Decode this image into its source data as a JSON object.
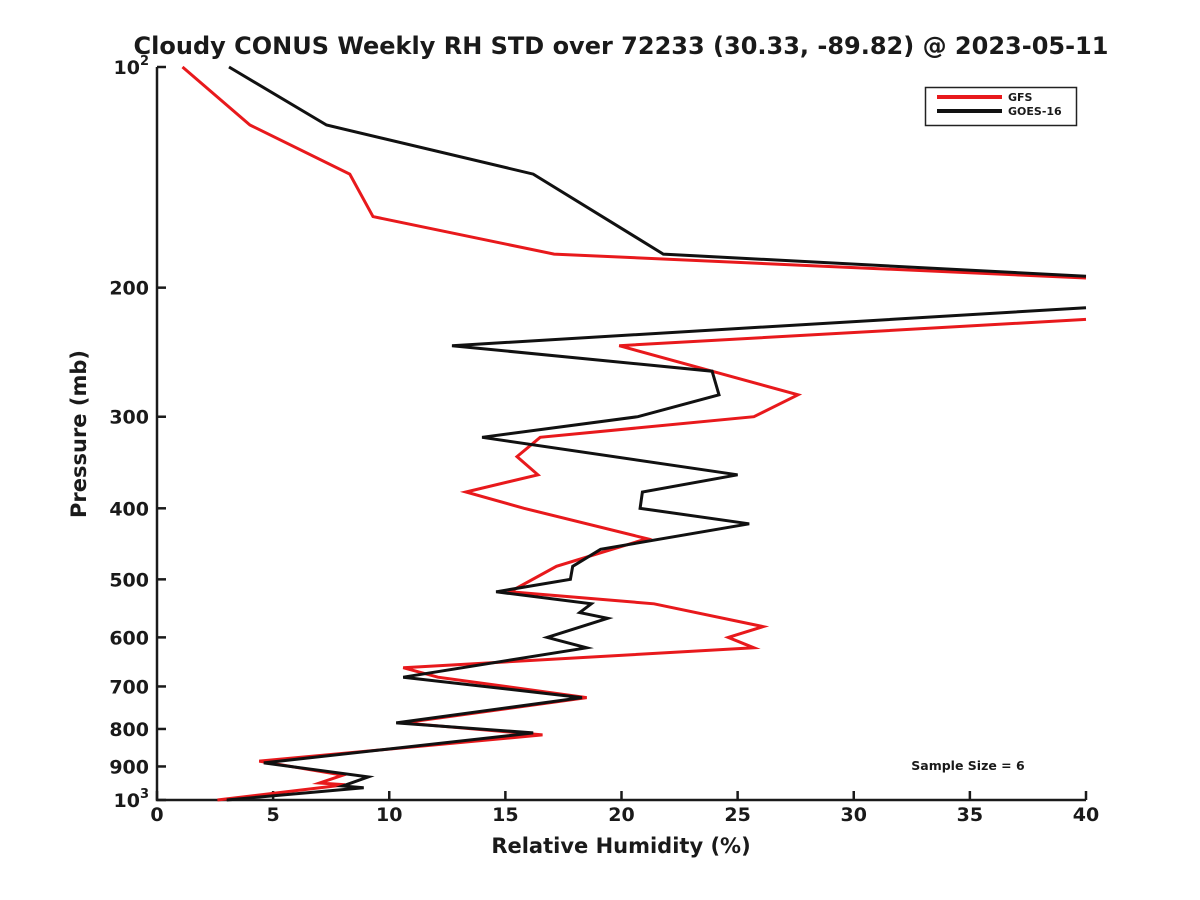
{
  "page": {
    "background": "#ffffff"
  },
  "chart_data": {
    "type": "line",
    "title": "Cloudy CONUS Weekly RH STD over 72233 (30.33, -89.82) @ 2023-05-11",
    "xlabel": "Relative Humidity (%)",
    "ylabel": "Pressure (mb)",
    "x_axis": {
      "min": 0,
      "max": 40,
      "ticks": [
        0,
        5,
        10,
        15,
        20,
        25,
        30,
        35,
        40
      ],
      "grid": false
    },
    "y_axis": {
      "scale": "log",
      "min": 100,
      "max": 1000,
      "inverted": true,
      "grid": false,
      "ticks": [
        {
          "value": 100,
          "label": "10^2"
        },
        {
          "value": 200,
          "label": "200"
        },
        {
          "value": 300,
          "label": "300"
        },
        {
          "value": 400,
          "label": "400"
        },
        {
          "value": 500,
          "label": "500"
        },
        {
          "value": 600,
          "label": "600"
        },
        {
          "value": 700,
          "label": "700"
        },
        {
          "value": 800,
          "label": "800"
        },
        {
          "value": 900,
          "label": "900"
        },
        {
          "value": 1000,
          "label": "10^3"
        }
      ]
    },
    "annotation": {
      "text": "Sample Size = 6"
    },
    "legend": {
      "position": "top-right",
      "entries": [
        {
          "label": "GFS",
          "color": "#e8191c"
        },
        {
          "label": "GOES-16",
          "color": "#111111"
        }
      ]
    },
    "series": [
      {
        "name": "GFS",
        "color": "#e8191c",
        "line_width": 3,
        "segments": [
          [
            [
              1.1,
              100
            ],
            [
              4.0,
              120
            ],
            [
              8.3,
              140
            ],
            [
              9.3,
              160
            ],
            [
              17.1,
              180
            ],
            [
              40,
              194
            ]
          ],
          [
            [
              40,
              221
            ],
            [
              19.9,
              240
            ],
            [
              27.6,
              280
            ],
            [
              25.7,
              300
            ],
            [
              16.5,
              320
            ],
            [
              15.5,
              340
            ],
            [
              16.4,
              360
            ],
            [
              13.3,
              380
            ],
            [
              15.8,
              400
            ],
            [
              21.1,
              440
            ],
            [
              19.1,
              460
            ],
            [
              17.2,
              480
            ],
            [
              15.2,
              520
            ],
            [
              21.4,
              540
            ],
            [
              26.1,
              580
            ],
            [
              24.6,
              600
            ],
            [
              25.7,
              620
            ],
            [
              10.6,
              660
            ],
            [
              12.1,
              680
            ],
            [
              18.5,
              725
            ],
            [
              10.6,
              785
            ],
            [
              16.6,
              815
            ],
            [
              4.4,
              885
            ],
            [
              8.0,
              925
            ],
            [
              7.0,
              948
            ],
            [
              8.1,
              953
            ],
            [
              2.6,
              1000
            ]
          ]
        ]
      },
      {
        "name": "GOES-16",
        "color": "#111111",
        "line_width": 3,
        "segments": [
          [
            [
              3.1,
              100
            ],
            [
              7.3,
              120
            ],
            [
              16.2,
              140
            ],
            [
              21.8,
              180
            ],
            [
              40,
              193
            ]
          ],
          [
            [
              40,
              213
            ],
            [
              12.7,
              240
            ],
            [
              23.9,
              260
            ],
            [
              24.2,
              280
            ],
            [
              20.7,
              300
            ],
            [
              14.0,
              320
            ],
            [
              25.0,
              360
            ],
            [
              20.9,
              380
            ],
            [
              20.8,
              400
            ],
            [
              25.5,
              420
            ],
            [
              19.1,
              455
            ],
            [
              17.9,
              480
            ],
            [
              17.8,
              500
            ],
            [
              14.6,
              520
            ],
            [
              18.7,
              540
            ],
            [
              18.2,
              555
            ],
            [
              19.4,
              565
            ],
            [
              16.8,
              600
            ],
            [
              18.5,
              620
            ],
            [
              10.6,
              680
            ],
            [
              18.3,
              725
            ],
            [
              10.3,
              785
            ],
            [
              16.2,
              810
            ],
            [
              4.6,
              890
            ],
            [
              9.1,
              930
            ],
            [
              8.0,
              957
            ],
            [
              8.9,
              962
            ],
            [
              3.0,
              1000
            ]
          ]
        ]
      }
    ]
  }
}
